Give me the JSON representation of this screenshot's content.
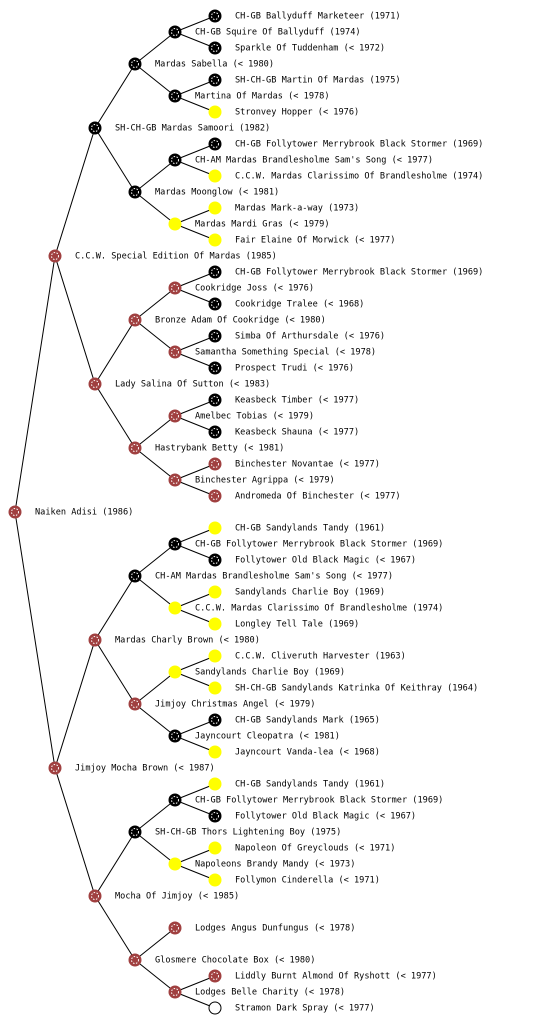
{
  "pedigree": {
    "name": "Naiken Adisi (1986)",
    "color": "#a04040",
    "sire": {
      "name": "C.C.W. Special Edition Of Mardas (1985)",
      "color": "#a04040",
      "sire": {
        "name": "SH-CH-GB Mardas Samoori (1982)",
        "color": "#000000",
        "sire": {
          "name": "Mardas Sabella (< 1980)",
          "color": "#000000",
          "sire": {
            "name": "CH-GB Squire Of Ballyduff (1974)",
            "color": "#000000",
            "sire": {
              "name": "CH-GB Ballyduff Marketeer (1971)",
              "color": "#000000"
            },
            "dam": {
              "name": "Sparkle Of Tuddenham (< 1972)",
              "color": "#000000"
            }
          },
          "dam": {
            "name": "Martina Of Mardas (< 1978)",
            "color": "#000000",
            "sire": {
              "name": "SH-CH-GB Martin Of Mardas (1975)",
              "color": "#000000"
            },
            "dam": {
              "name": "Stronvey Hopper (< 1976)",
              "color": "#ffff00"
            }
          }
        },
        "dam": {
          "name": "Mardas Moonglow (< 1981)",
          "color": "#000000",
          "sire": {
            "name": "CH-AM Mardas Brandlesholme Sam's Song (< 1977)",
            "color": "#000000",
            "sire": {
              "name": "CH-GB Follytower Merrybrook Black Stormer (1969)",
              "color": "#000000"
            },
            "dam": {
              "name": "C.C.W. Mardas Clarissimo Of Brandlesholme (1974)",
              "color": "#ffff00"
            }
          },
          "dam": {
            "name": "Mardas Mardi Gras (< 1979)",
            "color": "#ffff00",
            "sire": {
              "name": "Mardas Mark-a-way (1973)",
              "color": "#ffff00"
            },
            "dam": {
              "name": "Fair Elaine Of Morwick (< 1977)",
              "color": "#ffff00"
            }
          }
        }
      },
      "dam": {
        "name": "Lady Salina Of Sutton (< 1983)",
        "color": "#a04040",
        "sire": {
          "name": "Bronze Adam Of Cookridge (< 1980)",
          "color": "#a04040",
          "sire": {
            "name": "Cookridge Joss (< 1976)",
            "color": "#a04040",
            "sire": {
              "name": "CH-GB Follytower Merrybrook Black Stormer (1969)",
              "color": "#000000"
            },
            "dam": {
              "name": "Cookridge Tralee (< 1968)",
              "color": "#000000"
            }
          },
          "dam": {
            "name": "Samantha Something Special (< 1978)",
            "color": "#a04040",
            "sire": {
              "name": "Simba Of Arthursdale (< 1976)",
              "color": "#000000"
            },
            "dam": {
              "name": "Prospect Trudi (< 1976)",
              "color": "#000000"
            }
          }
        },
        "dam": {
          "name": "Hastrybank Betty (< 1981)",
          "color": "#a04040",
          "sire": {
            "name": "Amelbec Tobias (< 1979)",
            "color": "#a04040",
            "sire": {
              "name": "Keasbeck Timber (< 1977)",
              "color": "#000000"
            },
            "dam": {
              "name": "Keasbeck Shauna (< 1977)",
              "color": "#000000"
            }
          },
          "dam": {
            "name": "Binchester Agrippa (< 1979)",
            "color": "#a04040",
            "sire": {
              "name": "Binchester Novantae (< 1977)",
              "color": "#a04040"
            },
            "dam": {
              "name": "Andromeda Of Binchester (< 1977)",
              "color": "#a04040"
            }
          }
        }
      }
    },
    "dam": {
      "name": "Jimjoy Mocha Brown (< 1987)",
      "color": "#a04040",
      "sire": {
        "name": "Mardas Charly Brown (< 1980)",
        "color": "#a04040",
        "sire": {
          "name": "CH-AM Mardas Brandlesholme Sam's Song (< 1977)",
          "color": "#000000",
          "sire": {
            "name": "CH-GB Follytower Merrybrook Black Stormer (1969)",
            "color": "#000000",
            "sire": {
              "name": "CH-GB Sandylands Tandy (1961)",
              "color": "#ffff00"
            },
            "dam": {
              "name": "Follytower Old Black Magic (< 1967)",
              "color": "#000000"
            }
          },
          "dam": {
            "name": "C.C.W. Mardas Clarissimo Of Brandlesholme (1974)",
            "color": "#ffff00",
            "sire": {
              "name": "Sandylands Charlie Boy (1969)",
              "color": "#ffff00"
            },
            "dam": {
              "name": "Longley Tell Tale (1969)",
              "color": "#ffff00"
            }
          }
        },
        "dam": {
          "name": "Jimjoy Christmas Angel (< 1979)",
          "color": "#a04040",
          "sire": {
            "name": "Sandylands Charlie Boy (1969)",
            "color": "#ffff00",
            "sire": {
              "name": "C.C.W. Cliveruth Harvester (1963)",
              "color": "#ffff00"
            },
            "dam": {
              "name": "SH-CH-GB Sandylands Katrinka Of Keithray (1964)",
              "color": "#ffff00"
            }
          },
          "dam": {
            "name": "Jayncourt Cleopatra (< 1981)",
            "color": "#000000",
            "sire": {
              "name": "CH-GB Sandylands Mark (1965)",
              "color": "#000000"
            },
            "dam": {
              "name": "Jayncourt Vanda-lea (< 1968)",
              "color": "#ffff00"
            }
          }
        }
      },
      "dam": {
        "name": "Mocha Of Jimjoy (< 1985)",
        "color": "#a04040",
        "sire": {
          "name": "SH-CH-GB Thors Lightening Boy (1975)",
          "color": "#000000",
          "sire": {
            "name": "CH-GB Follytower Merrybrook Black Stormer (1969)",
            "color": "#000000",
            "sire": {
              "name": "CH-GB Sandylands Tandy (1961)",
              "color": "#ffff00"
            },
            "dam": {
              "name": "Follytower Old Black Magic (< 1967)",
              "color": "#000000"
            }
          },
          "dam": {
            "name": "Napoleons Brandy Mandy (< 1973)",
            "color": "#ffff00",
            "sire": {
              "name": "Napoleon Of Greyclouds (< 1971)",
              "color": "#ffff00"
            },
            "dam": {
              "name": "Follymon Cinderella (< 1971)",
              "color": "#ffff00"
            }
          }
        },
        "dam": {
          "name": "Glosmere Chocolate Box (< 1980)",
          "color": "#a04040",
          "sire": {
            "name": "Lodges Angus Dunfungus (< 1978)",
            "color": "#a04040"
          },
          "dam": {
            "name": "Lodges Belle Charity (< 1978)",
            "color": "#a04040",
            "sire": {
              "name": "Liddly Burnt Almond Of Ryshott (< 1977)",
              "color": "#a04040"
            },
            "dam": {
              "name": "Stramon Dark Spray (< 1977)",
              "color": "#ffffff"
            }
          }
        }
      }
    }
  }
}
